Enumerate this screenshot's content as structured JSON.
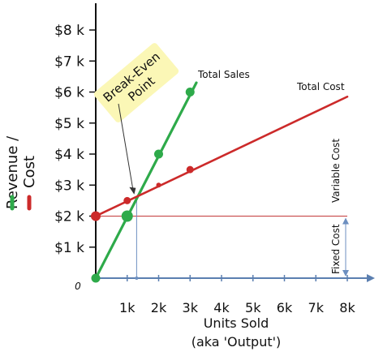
{
  "chart_data": {
    "type": "line",
    "x_ticks": [
      {
        "value": 1000,
        "label": "1k"
      },
      {
        "value": 2000,
        "label": "2k"
      },
      {
        "value": 3000,
        "label": "3k"
      },
      {
        "value": 4000,
        "label": "4k"
      },
      {
        "value": 5000,
        "label": "5k"
      },
      {
        "value": 6000,
        "label": "6k"
      },
      {
        "value": 7000,
        "label": "7k"
      },
      {
        "value": 8000,
        "label": "8k"
      }
    ],
    "y_ticks": [
      {
        "value": 1000,
        "label": "$1 k"
      },
      {
        "value": 2000,
        "label": "$2 k"
      },
      {
        "value": 3000,
        "label": "$3 k"
      },
      {
        "value": 4000,
        "label": "$4 k"
      },
      {
        "value": 5000,
        "label": "$5 k"
      },
      {
        "value": 6000,
        "label": "$6 k"
      },
      {
        "value": 7000,
        "label": "$7 k"
      },
      {
        "value": 8000,
        "label": "$8 k"
      }
    ],
    "origin_label": "0",
    "xlabel": "Units Sold",
    "xlabel_sub": "(aka 'Output')",
    "ylabel_revenue": "Revenue  /",
    "ylabel_cost": "Cost",
    "xlim": [
      0,
      8500
    ],
    "ylim": [
      0,
      8700
    ],
    "series": [
      {
        "name": "Total Sales",
        "color": "#2eaa4a",
        "line": [
          [
            0,
            0
          ],
          [
            3200,
            6300
          ]
        ],
        "points": [
          [
            0,
            0
          ],
          [
            1000,
            2000
          ],
          [
            2000,
            4000
          ],
          [
            3000,
            6000
          ]
        ]
      },
      {
        "name": "Total Cost",
        "color": "#cc2a2a",
        "line": [
          [
            0,
            2000
          ],
          [
            8000,
            5850
          ]
        ],
        "points": [
          [
            0,
            2000
          ],
          [
            1000,
            2500
          ],
          [
            2000,
            3000
          ],
          [
            3000,
            3500
          ]
        ]
      }
    ],
    "fixed_cost_level": 2000,
    "break_even": {
      "x": 1300,
      "y": 2620,
      "label_line1": "Break-Even",
      "label_line2": "Point"
    },
    "annotations": {
      "variable_cost": "Variable Cost",
      "fixed_cost": "Fixed Cost"
    },
    "colors": {
      "revenue": "#2eaa4a",
      "cost": "#cc2a2a",
      "fixed_line": "#c33a3a",
      "x_axis": "#5b7fb0",
      "guide": "#6d8fc0",
      "highlight": "#fbf7b6"
    }
  }
}
